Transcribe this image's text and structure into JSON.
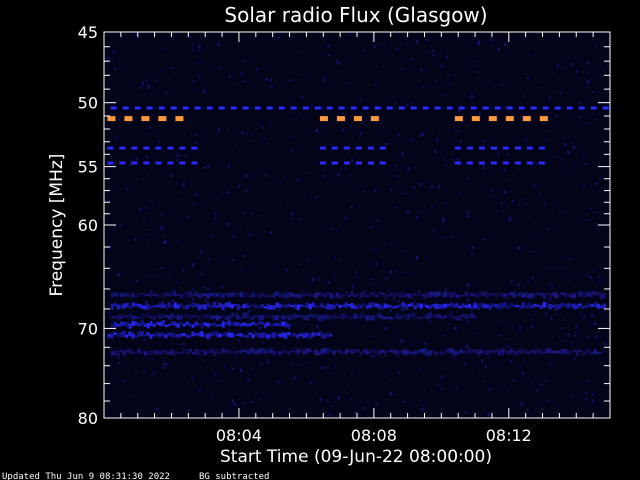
{
  "chart_data": {
    "type": "heatmap",
    "title": "Solar radio Flux (Glasgow)",
    "xlabel": "Start Time (09-Jun-22 08:00:00)",
    "ylabel": "Frequency [MHz]",
    "x_unit": "minutes after 08:00:00",
    "xlim": [
      0,
      15
    ],
    "ylim": [
      45,
      80
    ],
    "y_scale": "log",
    "x_ticks": [
      {
        "value": 4,
        "label": "08:04"
      },
      {
        "value": 8,
        "label": "08:08"
      },
      {
        "value": 12,
        "label": "08:12"
      }
    ],
    "y_ticks": [
      {
        "value": 45,
        "label": "45"
      },
      {
        "value": 50,
        "label": "50"
      },
      {
        "value": 55,
        "label": "55"
      },
      {
        "value": 60,
        "label": "60"
      },
      {
        "value": 70,
        "label": "70"
      },
      {
        "value": 80,
        "label": "80"
      }
    ],
    "colors": {
      "background": "#03031a",
      "weak": "#1a1a8c",
      "medium": "#2a2aff",
      "strong": "#ff9a3c"
    },
    "features": [
      {
        "name": "carrier-50.4",
        "freq": 50.4,
        "t_start": 0.2,
        "t_end": 14.8,
        "intensity": "medium",
        "dashed": true
      },
      {
        "name": "carrier-51.2-a",
        "freq": 51.2,
        "t_start": 0.1,
        "t_end": 2.6,
        "intensity": "strong",
        "dashed": true
      },
      {
        "name": "carrier-51.2-b",
        "freq": 51.2,
        "t_start": 6.4,
        "t_end": 8.2,
        "intensity": "strong",
        "dashed": true
      },
      {
        "name": "carrier-51.2-c",
        "freq": 51.2,
        "t_start": 10.4,
        "t_end": 13.2,
        "intensity": "strong",
        "dashed": true
      },
      {
        "name": "carrier-53.5-a",
        "freq": 53.5,
        "t_start": 0.1,
        "t_end": 2.6,
        "intensity": "medium",
        "dashed": true
      },
      {
        "name": "carrier-53.5-b",
        "freq": 53.5,
        "t_start": 6.4,
        "t_end": 8.2,
        "intensity": "medium",
        "dashed": true
      },
      {
        "name": "carrier-53.5-c",
        "freq": 53.5,
        "t_start": 10.4,
        "t_end": 13.2,
        "intensity": "medium",
        "dashed": true
      },
      {
        "name": "carrier-54.7-a",
        "freq": 54.7,
        "t_start": 0.1,
        "t_end": 2.6,
        "intensity": "medium",
        "dashed": true
      },
      {
        "name": "carrier-54.7-b",
        "freq": 54.7,
        "t_start": 6.4,
        "t_end": 8.2,
        "intensity": "medium",
        "dashed": true
      },
      {
        "name": "carrier-54.7-c",
        "freq": 54.7,
        "t_start": 10.4,
        "t_end": 13.2,
        "intensity": "medium",
        "dashed": true
      },
      {
        "name": "band-66.6",
        "freq": 66.6,
        "t_start": 0.2,
        "t_end": 14.8,
        "intensity": "weak",
        "dashed": false
      },
      {
        "name": "band-67.7",
        "freq": 67.7,
        "t_start": 0.2,
        "t_end": 14.8,
        "intensity": "medium",
        "dashed": false
      },
      {
        "name": "band-68.8",
        "freq": 68.8,
        "t_start": 0.2,
        "t_end": 11.0,
        "intensity": "weak",
        "dashed": false
      },
      {
        "name": "band-69.6",
        "freq": 69.6,
        "t_start": 0.2,
        "t_end": 5.5,
        "intensity": "medium",
        "dashed": false
      },
      {
        "name": "band-70.7",
        "freq": 70.7,
        "t_start": 0.1,
        "t_end": 6.7,
        "intensity": "medium",
        "dashed": false
      },
      {
        "name": "band-72.5",
        "freq": 72.5,
        "t_start": 0.2,
        "t_end": 14.8,
        "intensity": "weak",
        "dashed": false
      }
    ]
  },
  "footer": {
    "updated": "Updated Thu Jun  9 08:31:30 2022",
    "note": "BG subtracted"
  }
}
